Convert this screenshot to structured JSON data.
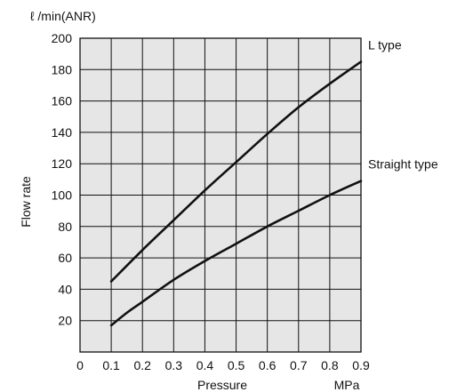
{
  "chart_data": {
    "type": "line",
    "unit_label": "ℓ /min(ANR)",
    "ylabel": "Flow rate",
    "xlabel": "Pressure",
    "xunit": "MPa",
    "xlim": [
      0,
      0.9
    ],
    "ylim": [
      0,
      200
    ],
    "xticks": [
      "0",
      "0.1",
      "0.2",
      "0.3",
      "0.4",
      "0.5",
      "0.6",
      "0.7",
      "0.8",
      "0.9"
    ],
    "yticks": [
      "20",
      "40",
      "60",
      "80",
      "100",
      "120",
      "140",
      "160",
      "180",
      "200"
    ],
    "grid": true,
    "plot_background": "#e6e6e6",
    "series": [
      {
        "name": "L type",
        "x": [
          0.1,
          0.2,
          0.3,
          0.4,
          0.5,
          0.6,
          0.7,
          0.8,
          0.9
        ],
        "y": [
          45,
          65,
          84,
          103,
          121,
          139,
          156,
          171,
          185
        ]
      },
      {
        "name": "Straight type",
        "x": [
          0.1,
          0.15,
          0.2,
          0.3,
          0.4,
          0.5,
          0.6,
          0.7,
          0.8,
          0.9
        ],
        "y": [
          17,
          25,
          32,
          46,
          58,
          69,
          80,
          90,
          100,
          109
        ]
      }
    ]
  }
}
